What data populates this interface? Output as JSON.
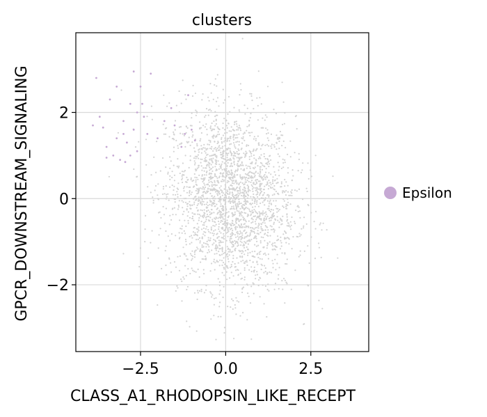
{
  "chart_data": {
    "type": "scatter",
    "title": "clusters",
    "xlabel": "CLASS_A1_RHODOPSIN_LIKE_RECEPT",
    "ylabel": "GPCR_DOWNSTREAM_SIGNALING",
    "xlim": [
      -4.4,
      4.2
    ],
    "ylim": [
      -3.55,
      3.85
    ],
    "xticks": [
      -2.5,
      0.0,
      2.5
    ],
    "xtick_labels": [
      "−2.5",
      "0.0",
      "2.5"
    ],
    "yticks": [
      -2,
      0,
      2
    ],
    "ytick_labels": [
      "−2",
      "0",
      "2"
    ],
    "grid": true,
    "legend_position": "right",
    "series": [
      {
        "name": "Epsilon",
        "color": "#c6a9d4",
        "points": [
          [
            -3.6,
            1.65
          ],
          [
            -3.5,
            1.2
          ],
          [
            -3.3,
            1.0
          ],
          [
            -3.2,
            1.4
          ],
          [
            -3.1,
            0.9
          ],
          [
            -3.0,
            1.8
          ],
          [
            -2.9,
            1.3
          ],
          [
            -2.8,
            2.2
          ],
          [
            -2.7,
            1.6
          ],
          [
            -2.6,
            1.1
          ],
          [
            -2.5,
            2.6
          ],
          [
            -2.4,
            1.9
          ],
          [
            -2.3,
            1.5
          ],
          [
            -3.8,
            2.8
          ],
          [
            -3.4,
            2.3
          ],
          [
            -2.2,
            2.9
          ],
          [
            -2.6,
            2.0
          ],
          [
            -3.0,
            1.5
          ],
          [
            -2.8,
            1.0
          ],
          [
            -3.7,
            1.9
          ],
          [
            -1.8,
            1.8
          ],
          [
            -1.5,
            1.7
          ],
          [
            -1.2,
            1.5
          ],
          [
            -1.0,
            1.6
          ],
          [
            -0.9,
            1.35
          ],
          [
            -1.3,
            1.2
          ],
          [
            -1.6,
            2.1
          ],
          [
            -2.0,
            1.4
          ],
          [
            -3.9,
            1.7
          ],
          [
            -3.2,
            2.6
          ],
          [
            -2.7,
            2.95
          ],
          [
            -2.45,
            2.2
          ],
          [
            -3.5,
            0.95
          ],
          [
            -2.95,
            0.85
          ],
          [
            -1.1,
            2.4
          ]
        ]
      }
    ],
    "background_points_color": "#d3d3d3"
  }
}
